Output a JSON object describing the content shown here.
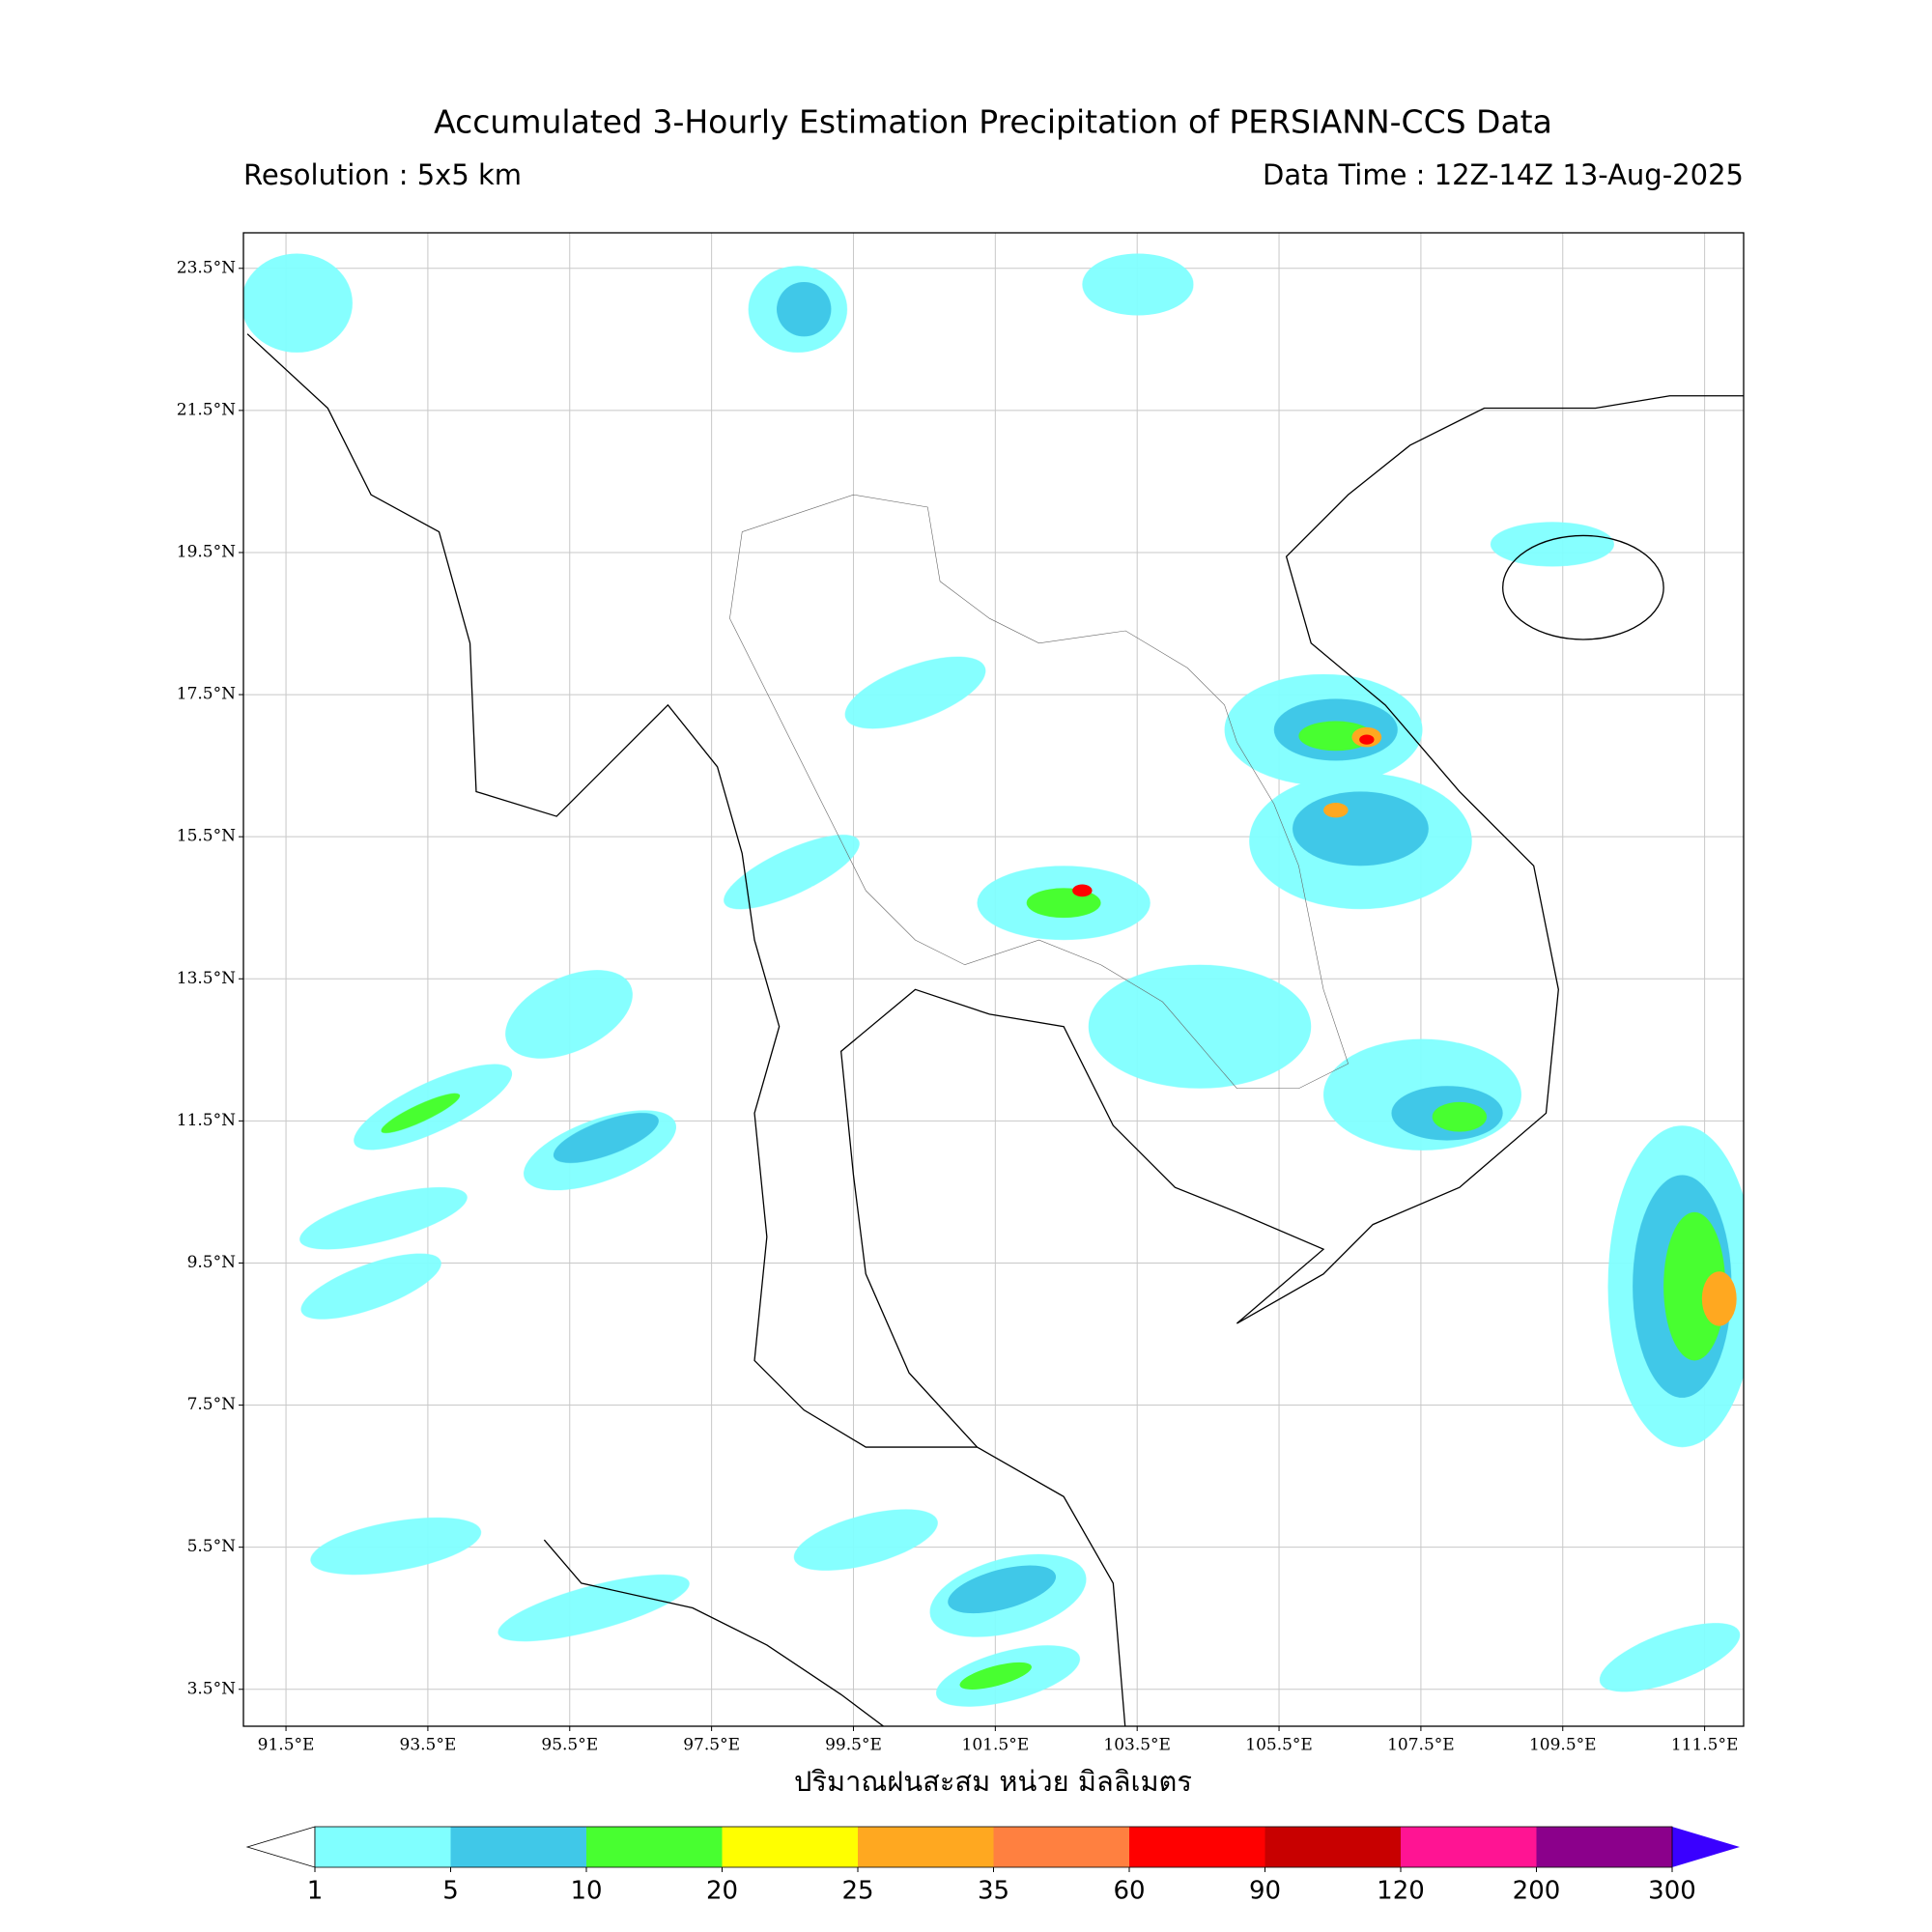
{
  "header": {
    "title": "Accumulated 3-Hourly Estimation Precipitation of PERSIANN-CCS Data",
    "resolution": "Resolution : 5x5 km",
    "data_time": "Data Time : 12Z-14Z 13-Aug-2025"
  },
  "map": {
    "xlabel": "ปริมาณฝนสะสม หน่วย มิลลิเมตร",
    "xlim": [
      90.9,
      112.05
    ],
    "ylim": [
      2.98,
      24.0
    ],
    "xticks": [
      {
        "value": 91.5,
        "label": "91.5°E"
      },
      {
        "value": 93.5,
        "label": "93.5°E"
      },
      {
        "value": 95.5,
        "label": "95.5°E"
      },
      {
        "value": 97.5,
        "label": "97.5°E"
      },
      {
        "value": 99.5,
        "label": "99.5°E"
      },
      {
        "value": 101.5,
        "label": "101.5°E"
      },
      {
        "value": 103.5,
        "label": "103.5°E"
      },
      {
        "value": 105.5,
        "label": "105.5°E"
      },
      {
        "value": 107.5,
        "label": "107.5°E"
      },
      {
        "value": 109.5,
        "label": "109.5°E"
      },
      {
        "value": 111.5,
        "label": "111.5°E"
      }
    ],
    "yticks": [
      {
        "value": 23.5,
        "label": "23.5°N"
      },
      {
        "value": 21.5,
        "label": "21.5°N"
      },
      {
        "value": 19.5,
        "label": "19.5°N"
      },
      {
        "value": 17.5,
        "label": "17.5°N"
      },
      {
        "value": 15.5,
        "label": "15.5°N"
      },
      {
        "value": 13.5,
        "label": "13.5°N"
      },
      {
        "value": 11.5,
        "label": "11.5°N"
      },
      {
        "value": 9.5,
        "label": "9.5°N"
      },
      {
        "value": 7.5,
        "label": "7.5°N"
      },
      {
        "value": 5.5,
        "label": "5.5°N"
      },
      {
        "value": 3.5,
        "label": "3.5°N"
      }
    ]
  },
  "colorbar": {
    "levels": [
      1,
      5,
      10,
      20,
      25,
      35,
      60,
      90,
      120,
      200,
      300
    ],
    "colors": [
      "#80ffff",
      "#40c8e8",
      "#48ff30",
      "#ffff00",
      "#ffa820",
      "#ff8040",
      "#ff0000",
      "#c80000",
      "#ff1493",
      "#8b008b"
    ],
    "under_color": "#ffffff",
    "over_color": "#3a00ff"
  }
}
